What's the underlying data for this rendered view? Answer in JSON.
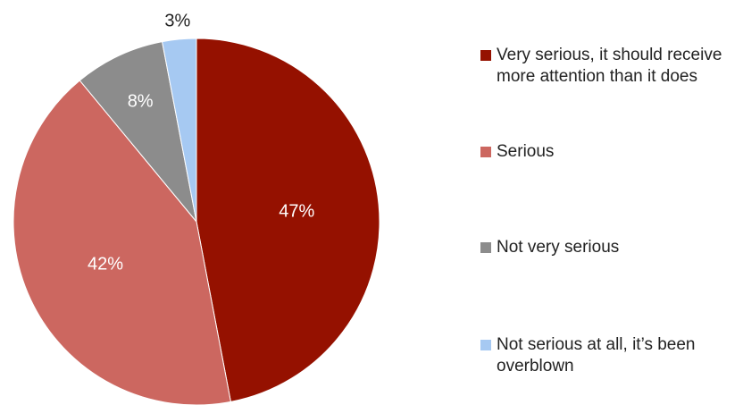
{
  "chart_data": {
    "type": "pie",
    "categories": [
      "Very serious, it should receive more attention than it does",
      "Serious",
      "Not very serious",
      "Not serious at all, it’s been overblown"
    ],
    "values": [
      47,
      42,
      8,
      3
    ],
    "data_labels": [
      "47%",
      "42%",
      "8%",
      "3%"
    ],
    "colors": [
      "#951100",
      "#cc6760",
      "#8c8c8c",
      "#a6c9f2"
    ],
    "label_colors": [
      "#ffffff",
      "#ffffff",
      "#ffffff",
      "#222222"
    ],
    "legend_position": "right",
    "start_angle": "12 o'clock",
    "direction": "clockwise"
  }
}
